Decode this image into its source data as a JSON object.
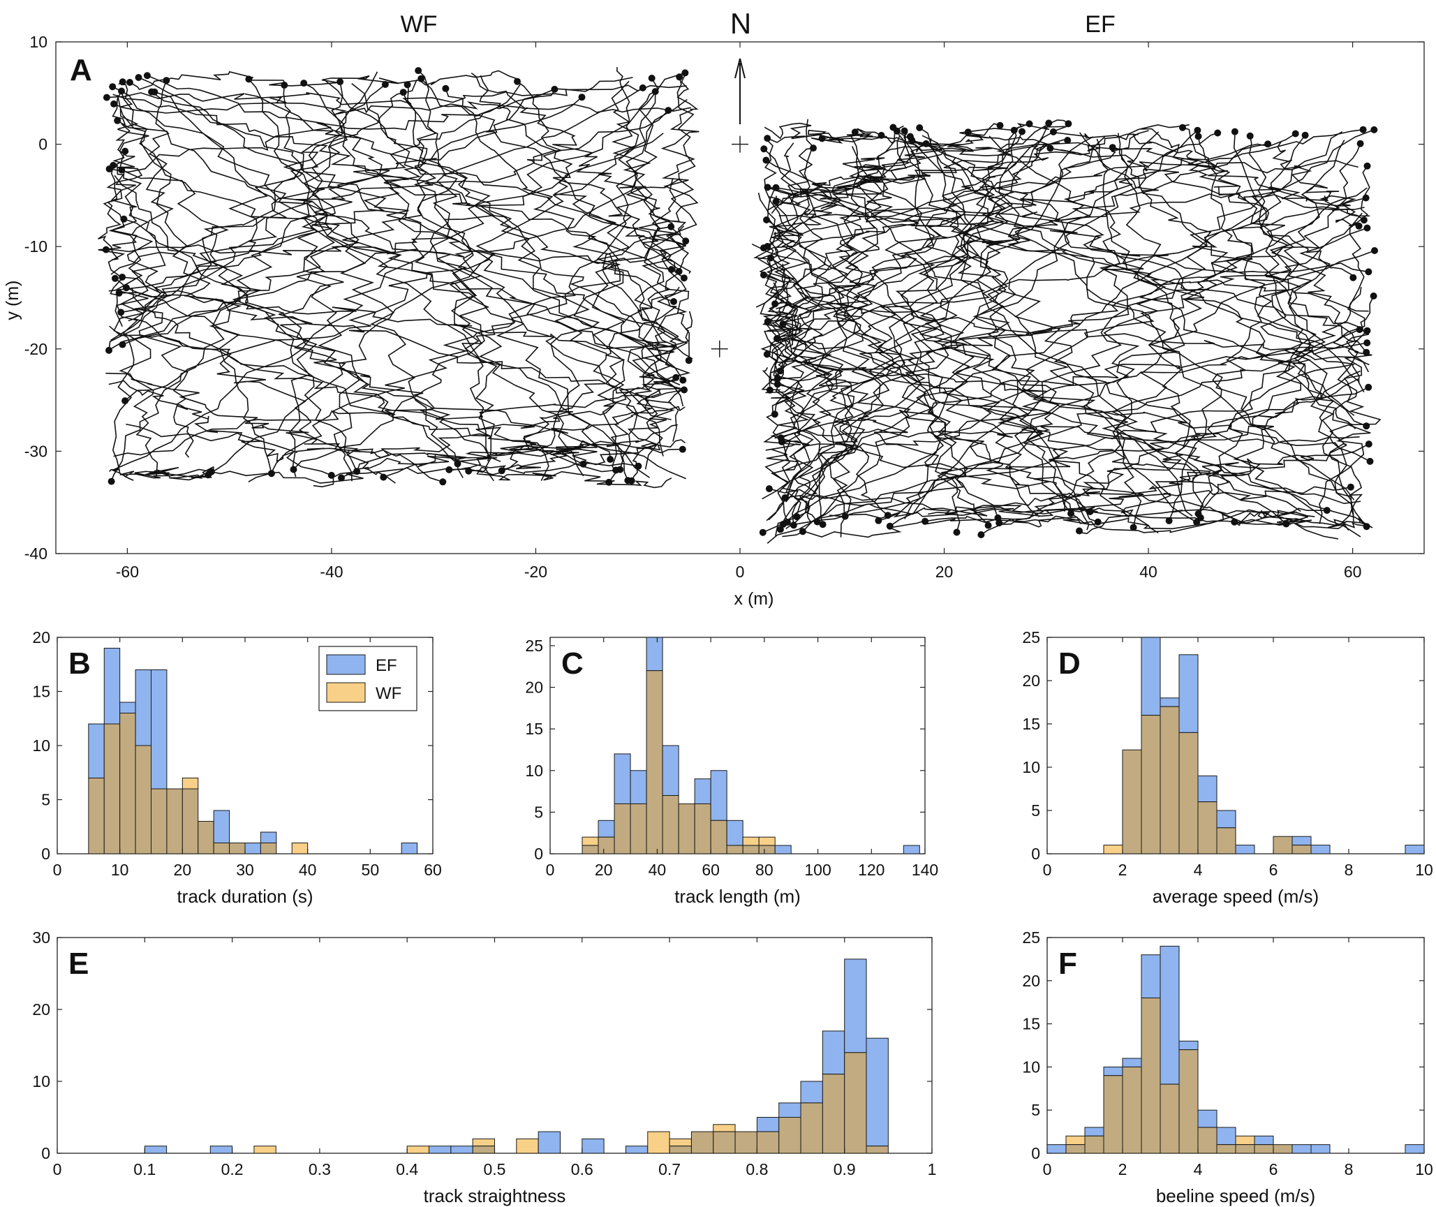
{
  "figure": {
    "title_left": "WF",
    "title_mid": "N",
    "title_right": "EF"
  },
  "colors": {
    "EF": "#8fb4ef",
    "WF": "#f9d088",
    "overlap": "#c2ab80",
    "edge": "#1a1a1a",
    "track": "#111111"
  },
  "chart_data": [
    {
      "panel": "A",
      "type": "scatter",
      "description_type": "track-map",
      "xlabel": "x (m)",
      "ylabel": "y (m)",
      "xlim": [
        -67,
        67
      ],
      "ylim": [
        -40,
        10
      ],
      "xticks": [
        -60,
        -40,
        -20,
        0,
        20,
        40,
        60
      ],
      "yticks": [
        10,
        0,
        -10,
        -20,
        -30,
        -40
      ],
      "region_labels": [
        "WF",
        "EF"
      ],
      "north_label": "N",
      "reference_marks": [
        {
          "x": 0,
          "y": 0
        },
        {
          "x": -2,
          "y": -20
        }
      ],
      "regions": [
        {
          "name": "WF",
          "x": [
            -62,
            -5
          ],
          "y": [
            -33,
            7
          ],
          "tracks": 78
        },
        {
          "name": "EF",
          "x": [
            2,
            62
          ],
          "y": [
            -38,
            2
          ],
          "tracks": 109
        }
      ]
    },
    {
      "panel": "B",
      "type": "bar",
      "xlabel": "track duration (s)",
      "xlim": [
        0,
        60
      ],
      "ylim": [
        0,
        20
      ],
      "xticks": [
        0,
        10,
        20,
        30,
        40,
        50,
        60
      ],
      "yticks": [
        0,
        5,
        10,
        15,
        20
      ],
      "bin_width": 2.5,
      "bin_start": 5,
      "legend": [
        "EF",
        "WF"
      ],
      "series": [
        {
          "name": "EF",
          "values": [
            12,
            19,
            14,
            17,
            17,
            6,
            6,
            3,
            4,
            1,
            1,
            2,
            0,
            0,
            0,
            0,
            0,
            0,
            0,
            0,
            1
          ]
        },
        {
          "name": "WF",
          "values": [
            7,
            12,
            13,
            10,
            6,
            6,
            7,
            3,
            1,
            1,
            0,
            1,
            0,
            1,
            0,
            0,
            0,
            0,
            0,
            0,
            0
          ]
        }
      ]
    },
    {
      "panel": "C",
      "type": "bar",
      "xlabel": "track length (m)",
      "xlim": [
        0,
        140
      ],
      "ylim": [
        0,
        26
      ],
      "xticks": [
        0,
        20,
        40,
        60,
        80,
        100,
        120,
        140
      ],
      "yticks": [
        0,
        5,
        10,
        15,
        20,
        25
      ],
      "bin_width": 6,
      "bin_start": 12,
      "series": [
        {
          "name": "EF",
          "values": [
            1,
            4,
            12,
            10,
            26,
            13,
            6,
            9,
            10,
            4,
            1,
            1,
            1,
            0,
            0,
            0,
            0,
            0,
            0,
            0,
            1
          ]
        },
        {
          "name": "WF",
          "values": [
            2,
            2,
            6,
            6,
            22,
            7,
            6,
            6,
            4,
            1,
            2,
            2,
            0,
            0,
            0,
            0,
            0,
            0,
            0,
            0,
            0
          ]
        }
      ]
    },
    {
      "panel": "D",
      "type": "bar",
      "xlabel": "average speed (m/s)",
      "xlim": [
        0,
        10
      ],
      "ylim": [
        0,
        25
      ],
      "xticks": [
        0,
        2,
        4,
        6,
        8,
        10
      ],
      "yticks": [
        0,
        5,
        10,
        15,
        20,
        25
      ],
      "bin_width": 0.5,
      "bin_start": 1.5,
      "series": [
        {
          "name": "EF",
          "values": [
            0,
            12,
            25,
            18,
            23,
            9,
            5,
            1,
            0,
            2,
            2,
            1,
            0,
            0,
            0,
            0,
            1
          ]
        },
        {
          "name": "WF",
          "values": [
            1,
            12,
            16,
            17,
            14,
            6,
            3,
            0,
            0,
            2,
            1,
            0,
            0,
            0,
            0,
            0,
            0
          ]
        }
      ]
    },
    {
      "panel": "E",
      "type": "bar",
      "xlabel": "track straightness",
      "xlim": [
        0,
        1
      ],
      "ylim": [
        0,
        30
      ],
      "xticks": [
        "0",
        "0.1",
        "0.2",
        "0.3",
        "0.4",
        "0.5",
        "0.6",
        "0.7",
        "0.8",
        "0.9",
        "1"
      ],
      "yticks": [
        0,
        10,
        20,
        30
      ],
      "bin_width": 0.025,
      "bin_start": 0.1,
      "series": [
        {
          "name": "EF",
          "values": [
            1,
            0,
            0,
            1,
            0,
            0,
            0,
            0,
            0,
            0,
            0,
            0,
            0,
            1,
            1,
            1,
            0,
            0,
            3,
            0,
            2,
            0,
            1,
            0,
            1,
            3,
            3,
            3,
            5,
            7,
            10,
            17,
            27,
            16
          ]
        },
        {
          "name": "WF",
          "values": [
            0,
            0,
            0,
            0,
            0,
            1,
            0,
            0,
            0,
            0,
            0,
            0,
            1,
            0,
            0,
            2,
            0,
            2,
            0,
            0,
            0,
            0,
            0,
            3,
            2,
            3,
            4,
            3,
            3,
            5,
            7,
            11,
            14,
            1
          ]
        }
      ]
    },
    {
      "panel": "F",
      "type": "bar",
      "xlabel": "beeline speed (m/s)",
      "xlim": [
        0,
        10
      ],
      "ylim": [
        0,
        25
      ],
      "xticks": [
        0,
        2,
        4,
        6,
        8,
        10
      ],
      "yticks": [
        0,
        5,
        10,
        15,
        20,
        25
      ],
      "bin_width": 0.5,
      "bin_start": 0,
      "series": [
        {
          "name": "EF",
          "values": [
            1,
            1,
            3,
            10,
            11,
            23,
            24,
            13,
            5,
            3,
            1,
            2,
            1,
            1,
            1,
            0,
            0,
            0,
            0,
            1
          ]
        },
        {
          "name": "WF",
          "values": [
            0,
            2,
            2,
            9,
            10,
            18,
            8,
            12,
            3,
            1,
            2,
            1,
            1,
            0,
            0,
            0,
            0,
            0,
            0,
            0
          ]
        }
      ]
    }
  ]
}
